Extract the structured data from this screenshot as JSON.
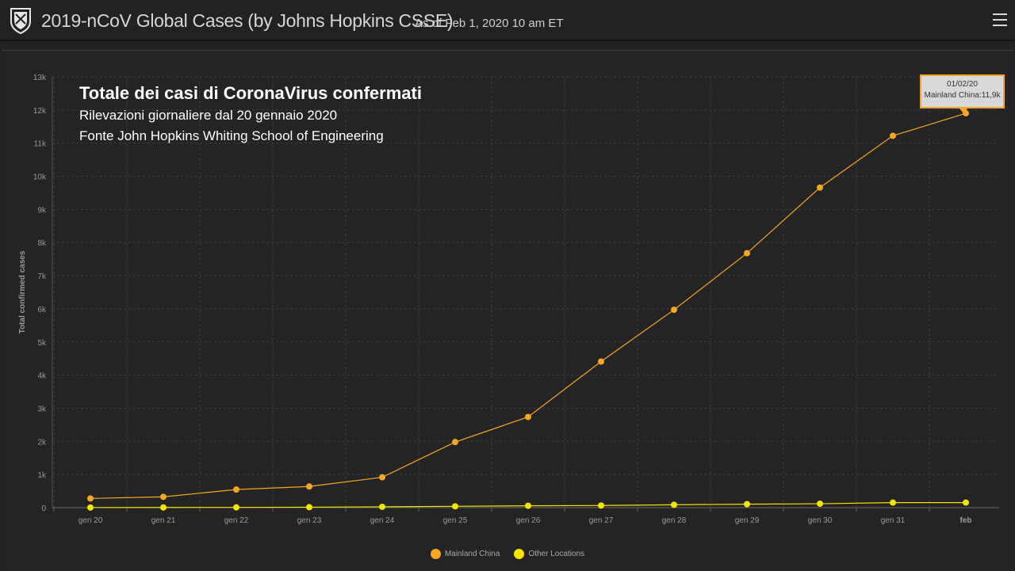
{
  "header": {
    "title": "2019-nCoV Global Cases (by Johns Hopkins CSSE)",
    "as_of": "As of Feb 1, 2020 10 am ET",
    "logo_icon": "university-shield-icon",
    "menu_icon": "hamburger-menu-icon"
  },
  "overlay": {
    "title": "Totale dei casi di CoronaVirus confermati",
    "line1": "Rilevazioni giornaliere dal 20 gennaio 2020",
    "line2": "Fonte John Hopkins Whiting School of Engineering"
  },
  "tooltip": {
    "date": "01/02/20",
    "text": "Mainland China:11,9k"
  },
  "colors": {
    "background": "#222222",
    "mainland_china": "#f5a623",
    "other_locations": "#f2e600",
    "grid": "#3c3c3c",
    "axis_text": "#9a9a9a"
  },
  "chart_data": {
    "type": "line",
    "ylabel": "Total confirmed cases",
    "xlabel": "",
    "ylim": [
      0,
      13000
    ],
    "yticks": [
      0,
      1000,
      2000,
      3000,
      4000,
      5000,
      6000,
      7000,
      8000,
      9000,
      10000,
      11000,
      12000,
      13000
    ],
    "ytick_labels": [
      "0",
      "1k",
      "2k",
      "3k",
      "4k",
      "5k",
      "6k",
      "7k",
      "8k",
      "9k",
      "10k",
      "11k",
      "12k",
      "13k"
    ],
    "categories": [
      "gen 20",
      "gen 21",
      "gen 22",
      "gen 23",
      "gen 24",
      "gen 25",
      "gen 26",
      "gen 27",
      "gen 28",
      "gen 29",
      "gen 30",
      "gen 31",
      "feb"
    ],
    "grid": true,
    "legend_position": "bottom-center",
    "series": [
      {
        "name": "Mainland China",
        "color": "#f5a623",
        "values": [
          278,
          326,
          547,
          639,
          916,
          1979,
          2737,
          4409,
          5970,
          7678,
          9658,
          11221,
          11900
        ]
      },
      {
        "name": "Other Locations",
        "color": "#f2e600",
        "values": [
          4,
          6,
          8,
          14,
          25,
          40,
          57,
          64,
          87,
          105,
          118,
          153,
          153
        ]
      }
    ]
  }
}
